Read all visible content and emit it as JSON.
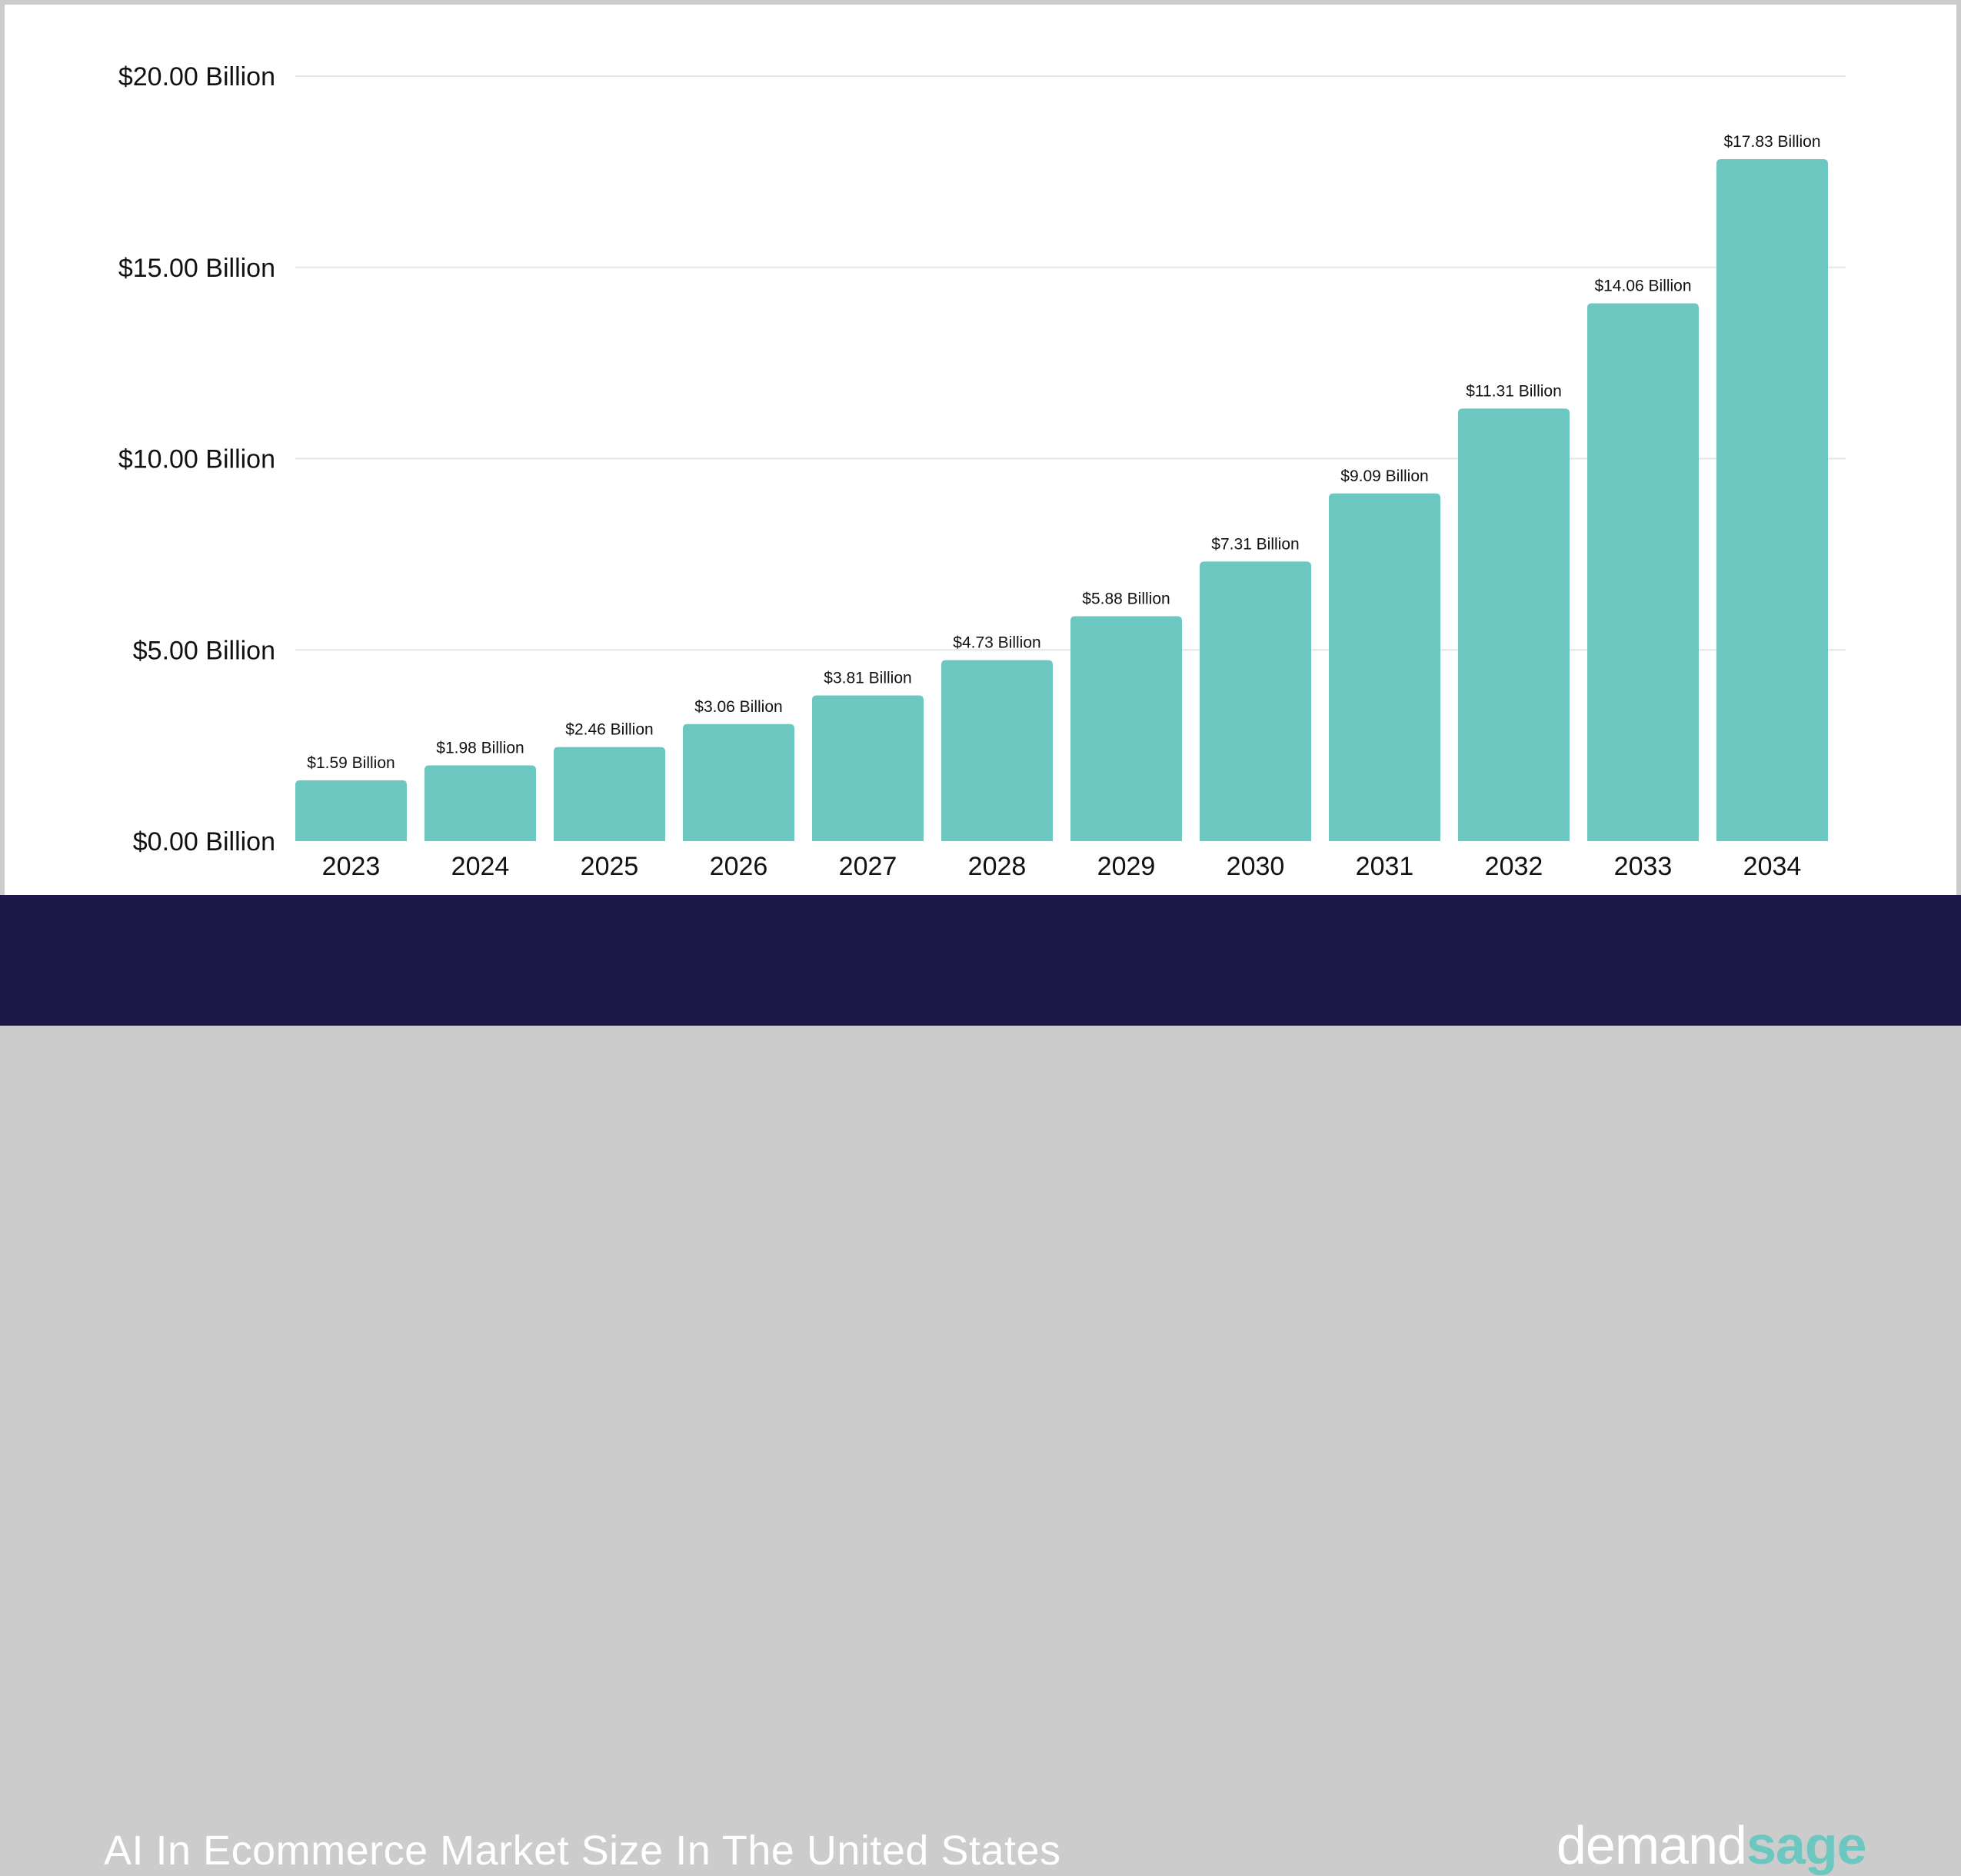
{
  "chart_data": {
    "type": "bar",
    "title": "AI In Ecommerce Market Size In The United States",
    "categories": [
      "2023",
      "2024",
      "2025",
      "2026",
      "2027",
      "2028",
      "2029",
      "2030",
      "2031",
      "2032",
      "2033",
      "2034"
    ],
    "values": [
      1.59,
      1.98,
      2.46,
      3.06,
      3.81,
      4.73,
      5.88,
      7.31,
      9.09,
      11.31,
      14.06,
      17.83
    ],
    "data_labels": [
      "$1.59 Billion",
      "$1.98 Billion",
      "$2.46 Billion",
      "$3.06 Billion",
      "$3.81 Billion",
      "$4.73 Billion",
      "$5.88 Billion",
      "$7.31 Billion",
      "$9.09 Billion",
      "$11.31 Billion",
      "$14.06 Billion",
      "$17.83 Billion"
    ],
    "y_ticks": [
      0,
      5,
      10,
      15,
      20
    ],
    "y_tick_labels": [
      "$0.00 Billion",
      "$5.00 Billion",
      "$10.00 Billion",
      "$15.00 Billion",
      "$20.00 Billion"
    ],
    "ylim": [
      0,
      20
    ],
    "grid": true,
    "bar_color": "#6cc7c1"
  },
  "footer": {
    "title": "AI In Ecommerce Market Size In The United States",
    "background": "#1e1848"
  },
  "logo": {
    "part1": "demand",
    "part2": "sage"
  }
}
